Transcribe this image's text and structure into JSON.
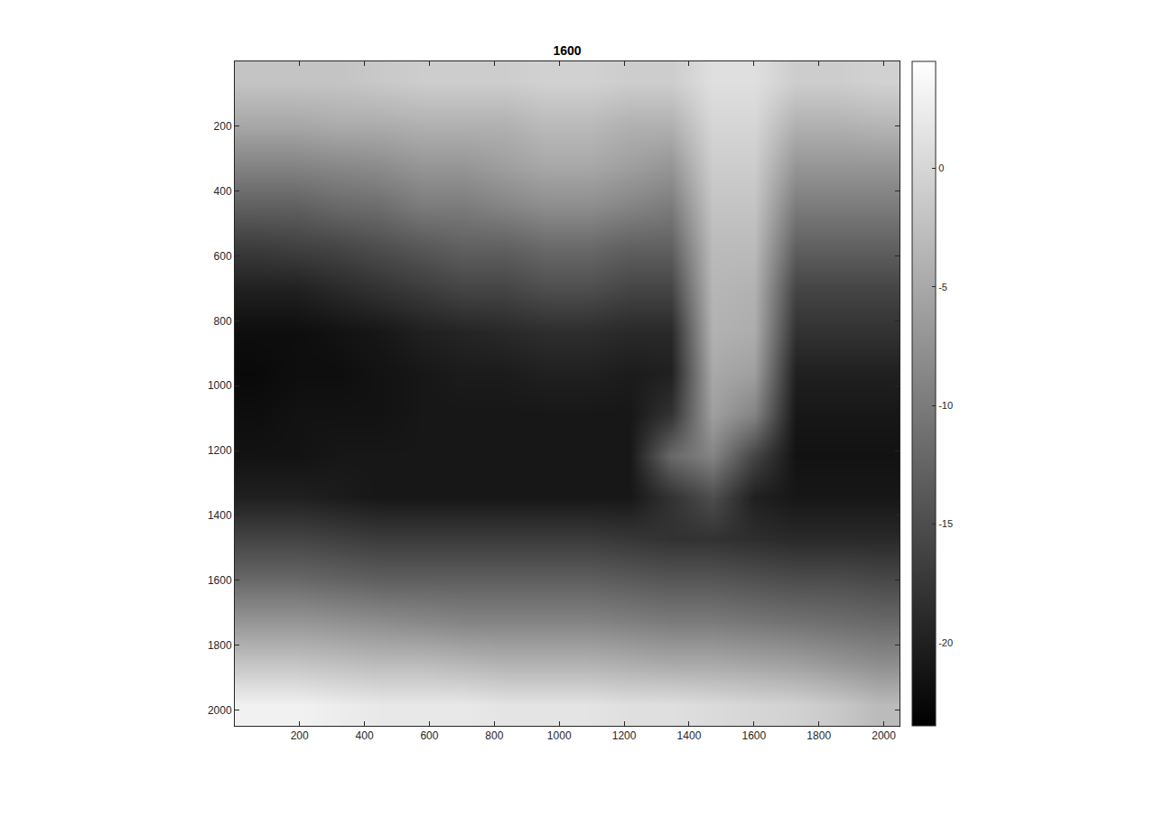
{
  "chart_data": {
    "type": "heatmap",
    "title": "1600",
    "color": "gray",
    "x": [
      64,
      192,
      320,
      448,
      576,
      704,
      832,
      960,
      1088,
      1216,
      1344,
      1472,
      1600,
      1728,
      1856,
      1984
    ],
    "y": [
      64,
      192,
      320,
      448,
      576,
      704,
      832,
      960,
      1088,
      1216,
      1344,
      1472,
      1600,
      1728,
      1856,
      1984
    ],
    "z": [
      [
        -2,
        -2,
        -2,
        -1.5,
        -1,
        -1,
        -1,
        -0.5,
        -0.5,
        -1,
        -1,
        1,
        1,
        -1,
        -1,
        -0.5
      ],
      [
        -5,
        -5,
        -4.5,
        -4.5,
        -4,
        -4,
        -4,
        -3,
        -3,
        -4,
        -4,
        0,
        0,
        -4,
        -4,
        -3.5
      ],
      [
        -9,
        -9,
        -8.5,
        -8,
        -7,
        -7,
        -6,
        -5,
        -5,
        -6,
        -7,
        -1,
        -1,
        -7,
        -7,
        -7
      ],
      [
        -13,
        -13,
        -12,
        -11.5,
        -10,
        -10,
        -9,
        -8,
        -8,
        -9,
        -10,
        -2,
        -2,
        -10,
        -10,
        -10
      ],
      [
        -17,
        -16.5,
        -16,
        -15,
        -14,
        -13,
        -13,
        -12,
        -12,
        -13,
        -13,
        -3,
        -3,
        -13,
        -13,
        -13
      ],
      [
        -20,
        -20,
        -19,
        -18,
        -17,
        -16,
        -16,
        -15,
        -15,
        -16,
        -16,
        -3.5,
        -4,
        -16,
        -16,
        -16
      ],
      [
        -22,
        -22,
        -21.5,
        -21,
        -20,
        -19.5,
        -19,
        -18.5,
        -18.5,
        -19,
        -19,
        -4,
        -4.5,
        -18,
        -18,
        -18
      ],
      [
        -22.5,
        -22,
        -22,
        -21.5,
        -21,
        -20.5,
        -20.5,
        -20,
        -20,
        -20.5,
        -20,
        -5,
        -6,
        -20,
        -20,
        -20
      ],
      [
        -22,
        -21.5,
        -21.5,
        -21.5,
        -21,
        -21,
        -21,
        -21,
        -21,
        -21,
        -18,
        -6,
        -9,
        -21,
        -21,
        -21
      ],
      [
        -21.5,
        -21.5,
        -21,
        -21,
        -21,
        -21,
        -21,
        -21,
        -21,
        -21,
        -12,
        -9,
        -16,
        -21.5,
        -21.5,
        -21.5
      ],
      [
        -20,
        -20,
        -20.5,
        -21,
        -21,
        -21,
        -21,
        -21,
        -21,
        -21,
        -18,
        -15,
        -20,
        -21,
        -21,
        -21
      ],
      [
        -16,
        -16,
        -16.5,
        -17,
        -17,
        -17,
        -17,
        -17,
        -17,
        -17.5,
        -18,
        -18,
        -18.5,
        -19,
        -19,
        -19
      ],
      [
        -12,
        -12,
        -12.5,
        -13,
        -13,
        -13,
        -13,
        -13,
        -13,
        -13.5,
        -14,
        -14,
        -14.5,
        -15,
        -15,
        -15.5
      ],
      [
        -7,
        -7,
        -7.5,
        -8,
        -8.5,
        -9,
        -9,
        -9,
        -9,
        -9.5,
        -10,
        -10,
        -10.5,
        -11,
        -11.5,
        -12
      ],
      [
        -2,
        -2,
        -2.5,
        -3,
        -3,
        -3.5,
        -4,
        -4,
        -4,
        -4.5,
        -5,
        -5,
        -5.5,
        -6,
        -7,
        -8
      ],
      [
        3,
        3,
        2.5,
        2,
        2,
        2,
        1.5,
        1.5,
        1.5,
        1,
        1,
        0.5,
        0,
        -0.5,
        -1.5,
        -3
      ]
    ],
    "xlim": [
      0.5,
      2048.5
    ],
    "ylim": [
      2048.5,
      0.5
    ],
    "xticks": [
      200,
      400,
      600,
      800,
      1000,
      1200,
      1400,
      1600,
      1800,
      2000
    ],
    "yticks": [
      200,
      400,
      600,
      800,
      1000,
      1200,
      1400,
      1600,
      1800,
      2000
    ],
    "zlim": [
      -23.5,
      4.5
    ],
    "zticks": [
      -20,
      -15,
      -10,
      -5,
      0
    ]
  }
}
